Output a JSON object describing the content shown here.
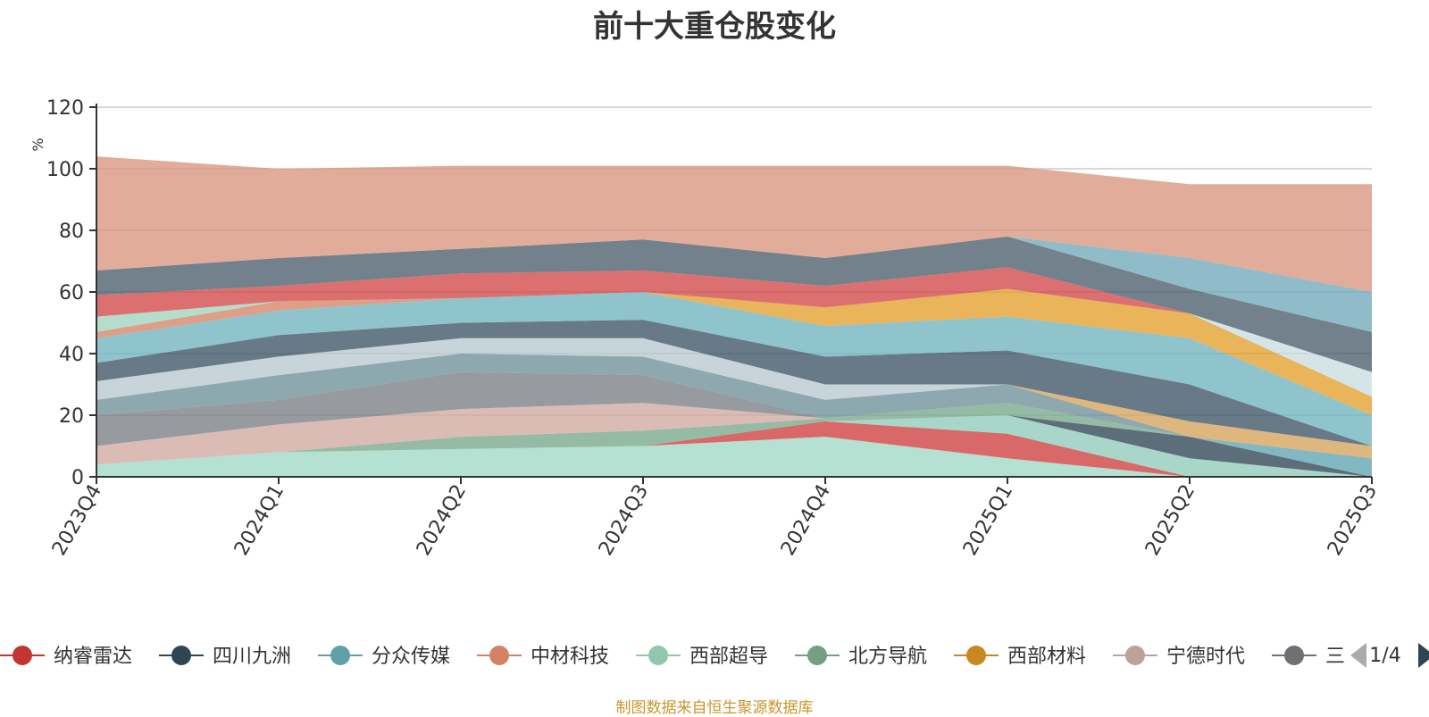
{
  "chart_data": {
    "type": "area",
    "title": "前十大重仓股变化",
    "ylabel": "%",
    "xlabel": "",
    "ylim": [
      0,
      120
    ],
    "y_ticks": [
      0,
      20,
      40,
      60,
      80,
      100,
      120
    ],
    "stacked": true,
    "grid": true,
    "legend_position": "bottom",
    "categories": [
      "2023Q4",
      "2024Q1",
      "2024Q2",
      "2024Q3",
      "2024Q4",
      "2025Q1",
      "2025Q2",
      "2025Q3"
    ],
    "series": [
      {
        "name": "",
        "color": "#9fd9c4",
        "values": [
          4,
          8,
          9,
          10,
          13,
          6,
          0,
          0
        ]
      },
      {
        "name": "",
        "color": "#ce3f3f",
        "values": [
          0,
          0,
          0,
          0,
          5,
          8,
          0,
          0
        ]
      },
      {
        "name": "",
        "color": "#8fccba",
        "values": [
          0,
          0,
          0,
          0,
          0,
          6,
          6,
          0
        ]
      },
      {
        "name": "",
        "color": "#2f4556",
        "values": [
          0,
          0,
          0,
          0,
          0,
          0,
          7,
          0
        ]
      },
      {
        "name": "",
        "color": "#5ea4b0",
        "values": [
          0,
          0,
          0,
          0,
          0,
          0,
          0,
          6
        ]
      },
      {
        "name": "",
        "color": "#78a88a",
        "values": [
          0,
          0,
          4,
          5,
          1,
          4,
          0,
          0
        ]
      },
      {
        "name": "",
        "color": "#cfa9a0",
        "values": [
          6,
          9,
          9,
          9,
          0,
          0,
          0,
          0
        ]
      },
      {
        "name": "",
        "color": "#7a7f85",
        "values": [
          10,
          8,
          12,
          9,
          0,
          0,
          0,
          0
        ]
      },
      {
        "name": "",
        "color": "#6e8f99",
        "values": [
          5,
          8,
          6,
          6,
          6,
          6,
          0,
          0
        ]
      },
      {
        "name": "",
        "color": "#d5a35a",
        "values": [
          0,
          0,
          0,
          0,
          0,
          0,
          5,
          4
        ]
      },
      {
        "name": "",
        "color": "#b7c9d0",
        "values": [
          6,
          6,
          5,
          6,
          5,
          0,
          0,
          0
        ]
      },
      {
        "name": "",
        "color": "#3e5566",
        "values": [
          6,
          7,
          5,
          6,
          9,
          11,
          12,
          0
        ]
      },
      {
        "name": "",
        "color": "#6fb3bf",
        "values": [
          8,
          8,
          8,
          9,
          10,
          11,
          15,
          10
        ]
      },
      {
        "name": "",
        "color": "#d38466",
        "values": [
          2,
          3,
          0,
          0,
          0,
          0,
          0,
          0
        ]
      },
      {
        "name": "",
        "color": "#e39f2b",
        "values": [
          0,
          0,
          0,
          0,
          6,
          9,
          8,
          6
        ]
      },
      {
        "name": "",
        "color": "#9fd4bd",
        "values": [
          5,
          0,
          0,
          0,
          0,
          0,
          0,
          0
        ]
      },
      {
        "name": "",
        "color": "#c8dde0",
        "values": [
          0,
          0,
          0,
          0,
          0,
          0,
          0,
          8
        ]
      },
      {
        "name": "",
        "color": "#d24848",
        "values": [
          7,
          5,
          8,
          7,
          7,
          7,
          0,
          0
        ]
      },
      {
        "name": "",
        "color": "#4a5d6b",
        "values": [
          8,
          9,
          8,
          10,
          9,
          10,
          8,
          13
        ]
      },
      {
        "name": "",
        "color": "#6fa9b8",
        "values": [
          0,
          0,
          0,
          0,
          0,
          0,
          10,
          13
        ]
      },
      {
        "name": "",
        "color": "#d9967e",
        "values": [
          37,
          29,
          27,
          24,
          30,
          23,
          24,
          35
        ]
      }
    ],
    "legend": [
      {
        "name": "纳睿雷达",
        "color": "#c23531"
      },
      {
        "name": "四川九洲",
        "color": "#2f4554"
      },
      {
        "name": "分众传媒",
        "color": "#61a0a8"
      },
      {
        "name": "中材科技",
        "color": "#d48265"
      },
      {
        "name": "西部超导",
        "color": "#91c7ae"
      },
      {
        "name": "北方导航",
        "color": "#749f83"
      },
      {
        "name": "西部材料",
        "color": "#ca8622"
      },
      {
        "name": "宁德时代",
        "color": "#bda29a"
      },
      {
        "name": "三",
        "color": "#6e7074"
      }
    ],
    "legend_page": "1/4"
  },
  "source_note": "制图数据来自恒生聚源数据库"
}
